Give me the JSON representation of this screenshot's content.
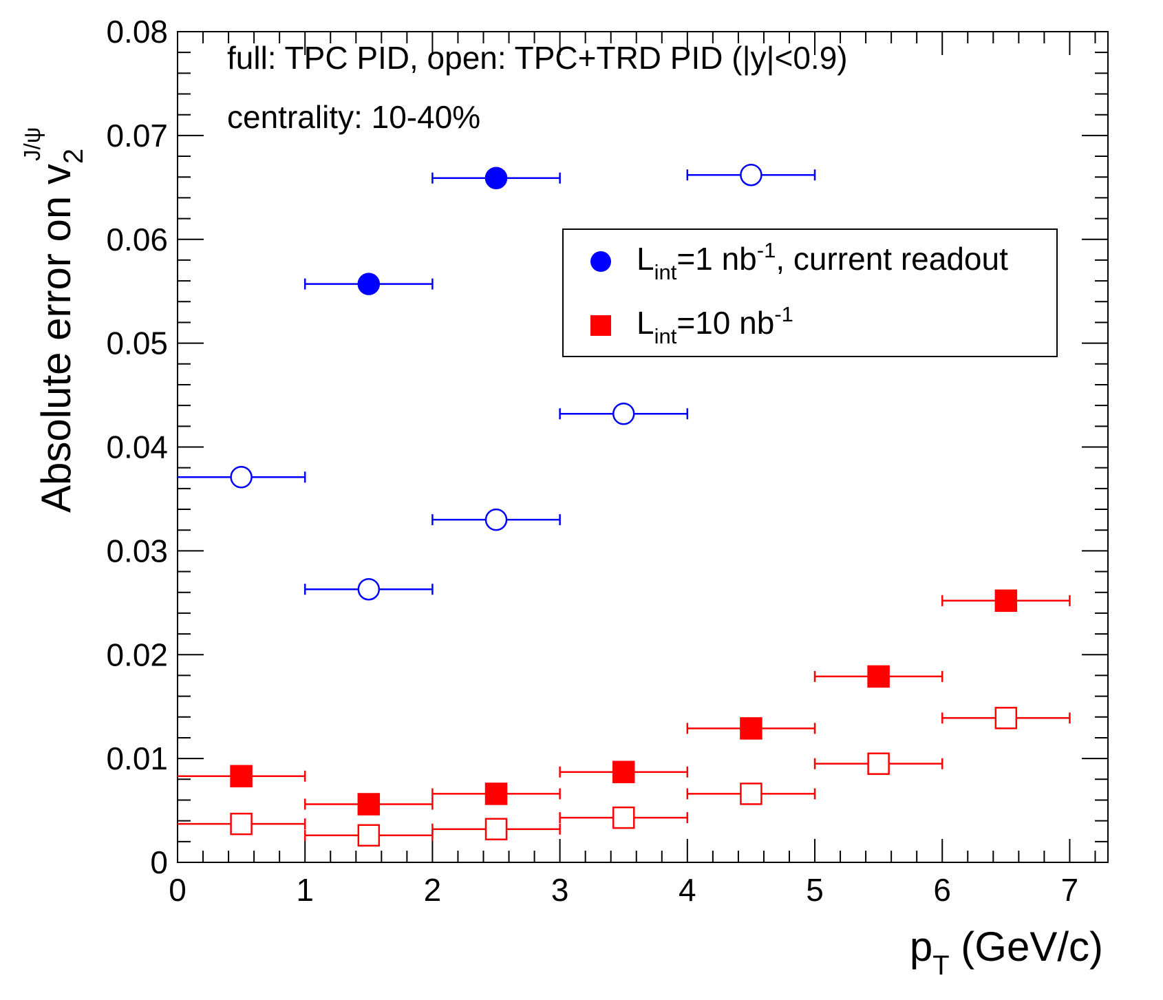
{
  "chart_data": {
    "type": "scatter",
    "xlabel_main": "p",
    "xlabel_sub": "T",
    "xlabel_rest": " (GeV/c)",
    "ylabel_main": "Absolute error on v",
    "ylabel_sub": "2",
    "ylabel_sup": "J/ψ",
    "xlim": [
      0,
      7.3
    ],
    "ylim": [
      0,
      0.08
    ],
    "xticks": [
      0,
      1,
      2,
      3,
      4,
      5,
      6,
      7
    ],
    "xtick_labels": [
      "0",
      "1",
      "2",
      "3",
      "4",
      "5",
      "6",
      "7"
    ],
    "yticks": [
      0,
      0.01,
      0.02,
      0.03,
      0.04,
      0.05,
      0.06,
      0.07,
      0.08
    ],
    "ytick_labels": [
      "0",
      "0.01",
      "0.02",
      "0.03",
      "0.04",
      "0.05",
      "0.06",
      "0.07",
      "0.08"
    ],
    "annotations": [
      "full: TPC PID, open: TPC+TRD PID (|y|<0.9)",
      "centrality: 10-40%"
    ],
    "legend": [
      {
        "marker": "circle",
        "color": "#0000ff",
        "base": "L",
        "sub": "int",
        "mid": "=1 nb",
        "sup": "-1",
        "rest": ", current readout"
      },
      {
        "marker": "square",
        "color": "#ff0000",
        "base": "L",
        "sub": "int",
        "mid": "=10 nb",
        "sup": "-1",
        "rest": ""
      }
    ],
    "series": [
      {
        "name": "1 nb-1 TPC PID (full)",
        "color": "#0000ff",
        "marker": "circle",
        "filled": true,
        "points": [
          {
            "x": 1.5,
            "y": 0.0557,
            "xerr": 0.5
          },
          {
            "x": 2.5,
            "y": 0.0659,
            "xerr": 0.5
          }
        ]
      },
      {
        "name": "1 nb-1 TPC+TRD PID (open)",
        "color": "#0000ff",
        "marker": "circle",
        "filled": false,
        "points": [
          {
            "x": 0.5,
            "y": 0.0371,
            "xerr": 0.5
          },
          {
            "x": 1.5,
            "y": 0.0263,
            "xerr": 0.5
          },
          {
            "x": 2.5,
            "y": 0.033,
            "xerr": 0.5
          },
          {
            "x": 3.5,
            "y": 0.0432,
            "xerr": 0.5
          },
          {
            "x": 4.5,
            "y": 0.0662,
            "xerr": 0.5
          }
        ]
      },
      {
        "name": "10 nb-1 TPC PID (full)",
        "color": "#ff0000",
        "marker": "square",
        "filled": true,
        "points": [
          {
            "x": 0.5,
            "y": 0.0083,
            "xerr": 0.5
          },
          {
            "x": 1.5,
            "y": 0.0056,
            "xerr": 0.5
          },
          {
            "x": 2.5,
            "y": 0.0066,
            "xerr": 0.5
          },
          {
            "x": 3.5,
            "y": 0.0087,
            "xerr": 0.5
          },
          {
            "x": 4.5,
            "y": 0.0129,
            "xerr": 0.5
          },
          {
            "x": 5.5,
            "y": 0.0179,
            "xerr": 0.5
          },
          {
            "x": 6.5,
            "y": 0.0252,
            "xerr": 0.5
          }
        ]
      },
      {
        "name": "10 nb-1 TPC+TRD PID (open)",
        "color": "#ff0000",
        "marker": "square",
        "filled": false,
        "points": [
          {
            "x": 0.5,
            "y": 0.0037,
            "xerr": 0.5
          },
          {
            "x": 1.5,
            "y": 0.0026,
            "xerr": 0.5
          },
          {
            "x": 2.5,
            "y": 0.0032,
            "xerr": 0.5
          },
          {
            "x": 3.5,
            "y": 0.0043,
            "xerr": 0.5
          },
          {
            "x": 4.5,
            "y": 0.0066,
            "xerr": 0.5
          },
          {
            "x": 5.5,
            "y": 0.0095,
            "xerr": 0.5
          },
          {
            "x": 6.5,
            "y": 0.0139,
            "xerr": 0.5
          }
        ]
      }
    ]
  }
}
